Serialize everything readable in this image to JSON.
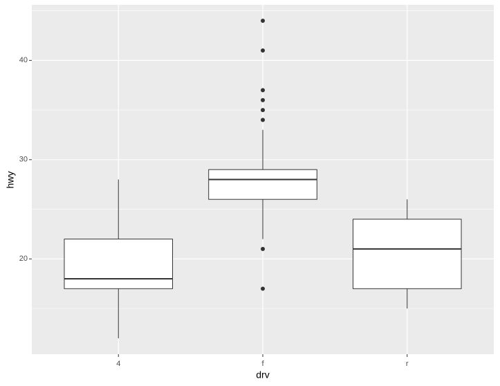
{
  "chart_data": {
    "type": "box",
    "x_label": "drv",
    "y_label": "hwy",
    "categories": [
      "4",
      "f",
      "r"
    ],
    "boxes": [
      {
        "min": 12,
        "q1": 17,
        "median": 18,
        "q3": 22,
        "max": 28,
        "outliers": []
      },
      {
        "min": 22,
        "q1": 26,
        "median": 28,
        "q3": 29,
        "max": 33,
        "outliers": [
          44,
          41,
          37,
          36,
          35,
          34,
          21,
          17
        ]
      },
      {
        "min": 15,
        "q1": 17,
        "median": 21,
        "q3": 24,
        "max": 26,
        "outliers": []
      }
    ],
    "ylim": [
      10.4,
      45.6
    ],
    "yticks": [
      20,
      30,
      40
    ],
    "minor_yticks": [
      15,
      25,
      35,
      45
    ],
    "grid": true,
    "panel_color": "#ebebeb",
    "box_fill": "#ffffff",
    "line_color": "#333333"
  }
}
